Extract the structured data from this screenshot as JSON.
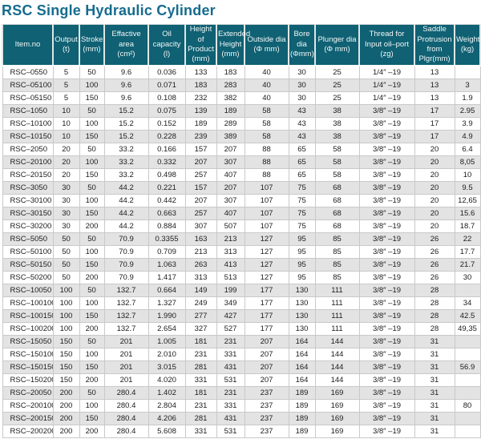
{
  "page": {
    "title": "RSC Single Hydraulic  Cylinder"
  },
  "colors": {
    "title_text": "#156c8e",
    "header_bg": "#0f6173",
    "header_text": "#f2f7f8",
    "row_alt_bg": "#e3e3e3",
    "row_bg": "#ffffff",
    "cell_border": "#c9c9c9"
  },
  "table": {
    "headers": [
      "Item.no",
      "Output\n(t)",
      "Stroke\n(mm)",
      "Effactive area\n(cm²)",
      "Oil capacity\n(l)",
      "Height of\nProduct\n(mm)",
      "Extended\nHeight\n(mm)",
      "Outside dia\n(Φ mm)",
      "Bore dia\n(Φmm)",
      "Plunger dia\n(Φ mm)",
      "Thread for\nInput oil–port\n(zg)",
      "Saddle\nProtrusion from\nPlgr(mm)",
      "Weight\n(kg)"
    ],
    "rows": [
      [
        "RSC–0550",
        "5",
        "50",
        "9.6",
        "0.036",
        "133",
        "183",
        "40",
        "30",
        "25",
        "1/4″ –19",
        "13",
        ""
      ],
      [
        "RSC–05100",
        "5",
        "100",
        "9.6",
        "0.071",
        "183",
        "283",
        "40",
        "30",
        "25",
        "1/4″ –19",
        "13",
        "3"
      ],
      [
        "RSC–05150",
        "5",
        "150",
        "9.6",
        "0.108",
        "232",
        "382",
        "40",
        "30",
        "25",
        "1/4″ –19",
        "13",
        "1.9"
      ],
      [
        "RSC–1050",
        "10",
        "50",
        "15.2",
        "0.075",
        "139",
        "189",
        "58",
        "43",
        "38",
        "3/8″ –19",
        "17",
        "2.95"
      ],
      [
        "RSC–10100",
        "10",
        "100",
        "15.2",
        "0.152",
        "189",
        "289",
        "58",
        "43",
        "38",
        "3/8″ –19",
        "17",
        "3.9"
      ],
      [
        "RSC–10150",
        "10",
        "150",
        "15.2",
        "0.228",
        "239",
        "389",
        "58",
        "43",
        "38",
        "3/8″ –19",
        "17",
        "4.9"
      ],
      [
        "RSC–2050",
        "20",
        "50",
        "33.2",
        "0.166",
        "157",
        "207",
        "88",
        "65",
        "58",
        "3/8″ –19",
        "20",
        "6.4"
      ],
      [
        "RSC–20100",
        "20",
        "100",
        "33.2",
        "0.332",
        "207",
        "307",
        "88",
        "65",
        "58",
        "3/8″ –19",
        "20",
        "8,05"
      ],
      [
        "RSC–20150",
        "20",
        "150",
        "33.2",
        "0.498",
        "257",
        "407",
        "88",
        "65",
        "58",
        "3/8″ –19",
        "20",
        "10"
      ],
      [
        "RSC–3050",
        "30",
        "50",
        "44.2",
        "0.221",
        "157",
        "207",
        "107",
        "75",
        "68",
        "3/8″ –19",
        "20",
        "9.5"
      ],
      [
        "RSC–30100",
        "30",
        "100",
        "44.2",
        "0.442",
        "207",
        "307",
        "107",
        "75",
        "68",
        "3/8″ –19",
        "20",
        "12,65"
      ],
      [
        "RSC–30150",
        "30",
        "150",
        "44.2",
        "0.663",
        "257",
        "407",
        "107",
        "75",
        "68",
        "3/8″ –19",
        "20",
        "15.6"
      ],
      [
        "RSC–30200",
        "30",
        "200",
        "44.2",
        "0.884",
        "307",
        "507",
        "107",
        "75",
        "68",
        "3/8″ –19",
        "20",
        "18.7"
      ],
      [
        "RSC–5050",
        "50",
        "50",
        "70.9",
        "0.3355",
        "163",
        "213",
        "127",
        "95",
        "85",
        "3/8″ –19",
        "26",
        "22"
      ],
      [
        "RSC–50100",
        "50",
        "100",
        "70.9",
        "0.709",
        "213",
        "313",
        "127",
        "95",
        "85",
        "3/8″ –19",
        "26",
        "17.7"
      ],
      [
        "RSC–50150",
        "50",
        "150",
        "70.9",
        "1.063",
        "263",
        "413",
        "127",
        "95",
        "85",
        "3/8″ –19",
        "26",
        "21.7"
      ],
      [
        "RSC–50200",
        "50",
        "200",
        "70.9",
        "1.417",
        "313",
        "513",
        "127",
        "95",
        "85",
        "3/8″ –19",
        "26",
        "30"
      ],
      [
        "RSC–10050",
        "100",
        "50",
        "132.7",
        "0.664",
        "149",
        "199",
        "177",
        "130",
        "111",
        "3/8″ –19",
        "28",
        ""
      ],
      [
        "RSC–100100",
        "100",
        "100",
        "132.7",
        "1.327",
        "249",
        "349",
        "177",
        "130",
        "111",
        "3/8″ –19",
        "28",
        "34"
      ],
      [
        "RSC–100150",
        "100",
        "150",
        "132.7",
        "1.990",
        "277",
        "427",
        "177",
        "130",
        "111",
        "3/8″ –19",
        "28",
        "42.5"
      ],
      [
        "RSC–100200",
        "100",
        "200",
        "132.7",
        "2.654",
        "327",
        "527",
        "177",
        "130",
        "111",
        "3/8″ –19",
        "28",
        "49,35"
      ],
      [
        "RSC–15050",
        "150",
        "50",
        "201",
        "1.005",
        "181",
        "231",
        "207",
        "164",
        "144",
        "3/8″ –19",
        "31",
        ""
      ],
      [
        "RSC–150100",
        "150",
        "100",
        "201",
        "2.010",
        "231",
        "331",
        "207",
        "164",
        "144",
        "3/8″ –19",
        "31",
        ""
      ],
      [
        "RSC–150150",
        "150",
        "150",
        "201",
        "3.015",
        "281",
        "431",
        "207",
        "164",
        "144",
        "3/8″ –19",
        "31",
        "56.9"
      ],
      [
        "RSC–150200",
        "150",
        "200",
        "201",
        "4.020",
        "331",
        "531",
        "207",
        "164",
        "144",
        "3/8″ –19",
        "31",
        ""
      ],
      [
        "RSC–20050",
        "200",
        "50",
        "280.4",
        "1.402",
        "181",
        "231",
        "237",
        "189",
        "169",
        "3/8″ –19",
        "31",
        ""
      ],
      [
        "RSC–200100",
        "200",
        "100",
        "280.4",
        "2.804",
        "231",
        "331",
        "237",
        "189",
        "169",
        "3/8″ –19",
        "31",
        "80"
      ],
      [
        "RSC–200150",
        "200",
        "150",
        "280.4",
        "4.206",
        "281",
        "431",
        "237",
        "189",
        "169",
        "3/8″ –19",
        "31",
        ""
      ],
      [
        "RSC–200200",
        "200",
        "200",
        "280.4",
        "5.608",
        "331",
        "531",
        "237",
        "189",
        "169",
        "3/8″ –19",
        "31",
        ""
      ]
    ]
  }
}
